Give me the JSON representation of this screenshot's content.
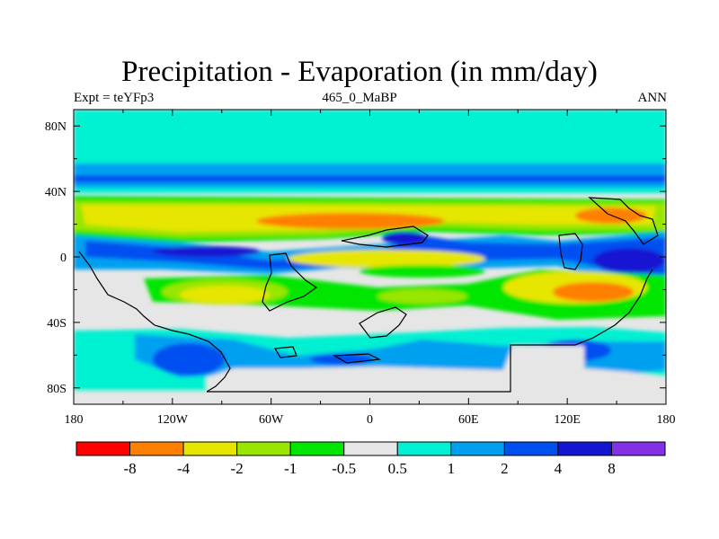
{
  "chart_data": {
    "type": "heatmap",
    "title": "Precipitation - Evaporation (in mm/day)",
    "subtitle_left": "Expt = teYFp3",
    "subtitle_center": "465_0_MaBP",
    "subtitle_right": "ANN",
    "x_ticks": [
      "180",
      "120W",
      "60W",
      "0",
      "60E",
      "120E",
      "180"
    ],
    "y_ticks": [
      "80N",
      "40N",
      "0",
      "40S",
      "80S"
    ],
    "xlim": [
      -180,
      180
    ],
    "ylim": [
      -90,
      90
    ],
    "colorbar": {
      "labels": [
        "-8",
        "-4",
        "-2",
        "-1",
        "-0.5",
        "0.5",
        "1",
        "2",
        "4",
        "8"
      ],
      "colors": [
        "#ff0000",
        "#ff8000",
        "#e6e600",
        "#99e600",
        "#00e600",
        "#e6e6e6",
        "#00f0d2",
        "#00a0f0",
        "#0050f0",
        "#1414d2",
        "#8232e6"
      ]
    }
  }
}
